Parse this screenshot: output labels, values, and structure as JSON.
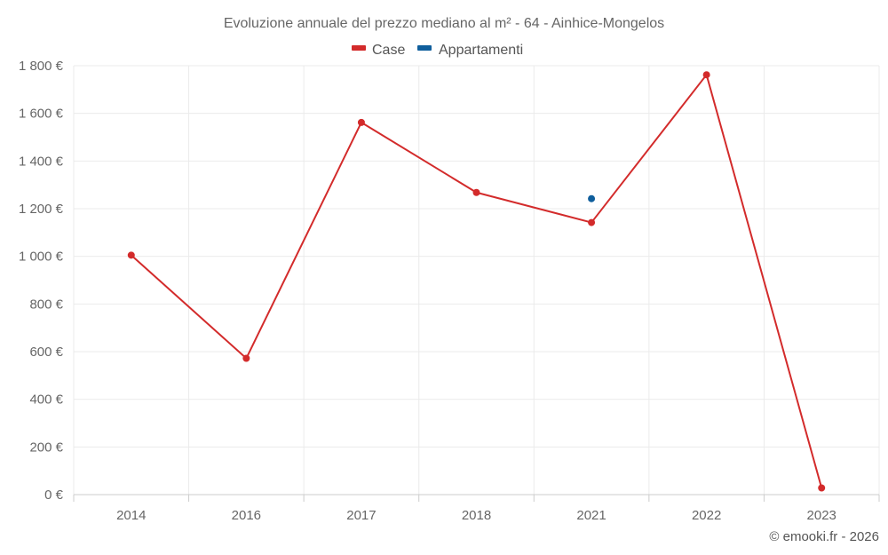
{
  "chart_data": {
    "type": "line",
    "title": "Evoluzione annuale del prezzo mediano al m² - 64 - Ainhice-Mongelos",
    "categories": [
      "2014",
      "2016",
      "2017",
      "2018",
      "2021",
      "2022",
      "2023"
    ],
    "series": [
      {
        "name": "Case",
        "color": "#d32b2b",
        "values": [
          1005,
          572,
          1562,
          1268,
          1142,
          1762,
          28
        ]
      },
      {
        "name": "Appartamenti",
        "color": "#0f5e9c",
        "values": [
          null,
          null,
          null,
          null,
          1242,
          null,
          null
        ]
      }
    ],
    "ylim": [
      0,
      1800
    ],
    "yticks": [
      0,
      200,
      400,
      600,
      800,
      1000,
      1200,
      1400,
      1600,
      1800
    ],
    "ytick_labels": [
      "0 €",
      "200 €",
      "400 €",
      "600 €",
      "800 €",
      "1 000 €",
      "1 200 €",
      "1 400 €",
      "1 600 €",
      "1 800 €"
    ],
    "xlabel": "",
    "ylabel": "",
    "grid": true,
    "legend_position": "top-center"
  },
  "credit": "© emooki.fr - 2026"
}
